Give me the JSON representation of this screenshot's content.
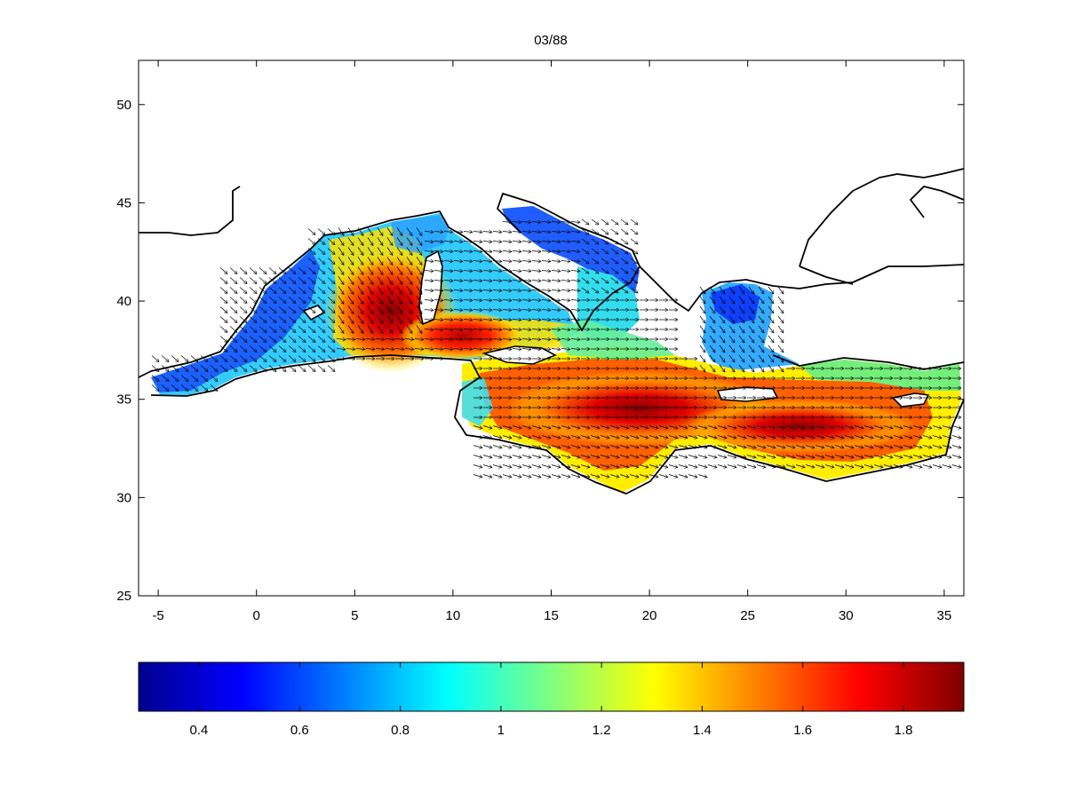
{
  "map": {
    "title": "03/88",
    "x_ticks": [
      -5,
      0,
      5,
      10,
      15,
      20,
      25,
      30,
      35
    ],
    "y_ticks": [
      25,
      30,
      35,
      40,
      45,
      50
    ],
    "x_range": [
      -6,
      36
    ],
    "y_range": [
      25,
      52.25
    ],
    "field": "scalar field with flow vector arrows over the Mediterranean Sea",
    "colormap": "jet"
  },
  "colorbar": {
    "ticks": [
      "0.4",
      "0.6",
      "0.8",
      "1",
      "1.2",
      "1.4",
      "1.6",
      "1.8"
    ],
    "tick_values": [
      0.4,
      0.6,
      0.8,
      1.0,
      1.2,
      1.4,
      1.6,
      1.8
    ],
    "range": [
      0.28,
      1.92
    ],
    "colors": [
      "#00008f",
      "#0000ff",
      "#00ffff",
      "#ffff00",
      "#ff0000",
      "#800000"
    ]
  }
}
